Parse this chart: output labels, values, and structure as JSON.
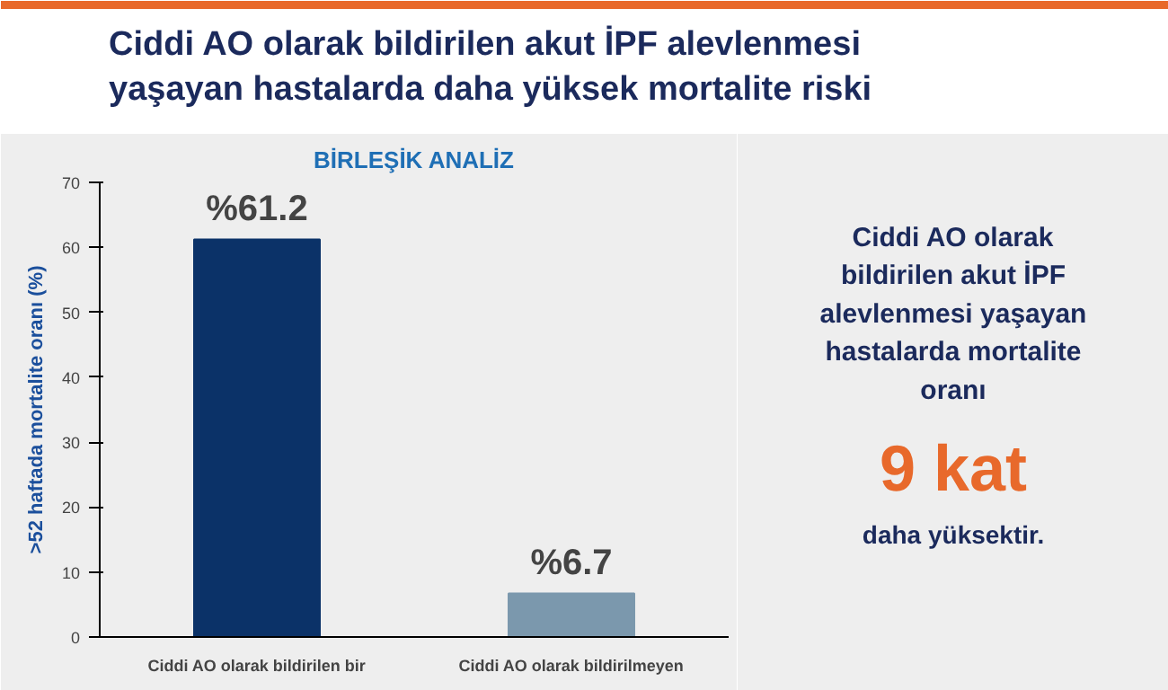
{
  "chart_data": {
    "type": "bar",
    "title": "Ciddi AO olarak bildirilen akut İPF alevlenmesi\nyaşayan hastalarda daha yüksek mortalite riski",
    "subtitle": "BİRLEŞİK ANALİZ",
    "ylabel": ">52 haftada mortalite oranı (%)",
    "categories": [
      "Ciddi AO olarak bildirilen bir",
      "Ciddi AO olarak bildirilmeyen"
    ],
    "values": [
      61.2,
      6.7
    ],
    "colors": [
      "#0b3268",
      "#7b98ad"
    ],
    "value_labels": [
      "%61.2",
      "%6.7"
    ],
    "ylim": [
      0,
      70
    ],
    "yticks": [
      0,
      10,
      20,
      30,
      40,
      50,
      60,
      70
    ],
    "grid": false,
    "annotations": [
      "Ciddi AO olarak bildirilen akut İPF alevlenmesi yaşayan hastalarda mortalite oranı",
      "9 kat",
      "daha yüksektir."
    ]
  }
}
